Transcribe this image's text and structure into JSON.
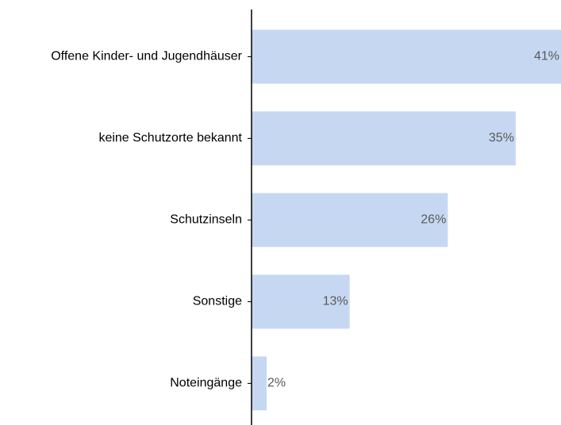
{
  "chart_data": {
    "type": "bar",
    "orientation": "horizontal",
    "categories": [
      "Offene Kinder- und Jugendhäuser",
      "keine Schutzorte bekannt",
      "Schutzinseln",
      "Sonstige",
      "Noteingänge"
    ],
    "values": [
      41,
      35,
      26,
      13,
      2
    ],
    "value_labels": [
      "41%",
      "35%",
      "26%",
      "13%",
      "2%"
    ],
    "color": "#c6d8f1",
    "xlim": [
      0,
      41
    ],
    "grid": false
  }
}
